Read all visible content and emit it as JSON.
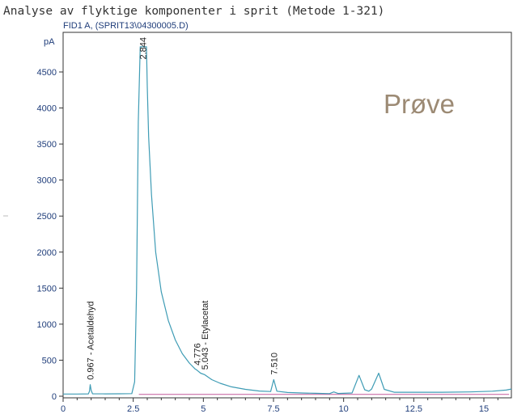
{
  "header": {
    "title": "Analyse av flyktige komponenter i sprit (Metode 1-321)",
    "signal_label": "FID1 A,  (SPRIT13\\04300005.D)",
    "watermark": "Prøve"
  },
  "chart_data": {
    "type": "line",
    "title": "Analyse av flyktige komponenter i sprit (Metode 1-321)",
    "subtitle": "FID1 A,  (SPRIT13\\04300005.D)",
    "xlabel": "",
    "ylabel": "pA",
    "xlim": [
      0,
      16
    ],
    "ylim": [
      0,
      4850
    ],
    "x_ticks": [
      0,
      2.5,
      5,
      7.5,
      10,
      12.5,
      15
    ],
    "x_tick_labels": [
      "0",
      "2.5",
      "5",
      "7.5",
      "10",
      "12.5",
      "15"
    ],
    "y_ticks": [
      0,
      500,
      1000,
      1500,
      2000,
      2500,
      3000,
      3500,
      4000,
      4500
    ],
    "y_tick_labels": [
      "0",
      "500",
      "1000",
      "1500",
      "2000",
      "2500",
      "3000",
      "3500",
      "4000",
      "4500"
    ],
    "grid": false,
    "colors": {
      "trace": "#3f9cb5",
      "baseline": "#c25a9a",
      "frame": "#333333",
      "text": "#1f3d7a",
      "watermark": "#9c8a74"
    },
    "baseline_level": 25,
    "series": [
      {
        "points": [
          [
            0.0,
            30
          ],
          [
            0.5,
            30
          ],
          [
            0.9,
            32
          ],
          [
            0.94,
            70
          ],
          [
            0.967,
            160
          ],
          [
            1.0,
            80
          ],
          [
            1.05,
            34
          ],
          [
            1.5,
            33
          ],
          [
            2.0,
            34
          ],
          [
            2.45,
            36
          ],
          [
            2.55,
            200
          ],
          [
            2.62,
            1500
          ],
          [
            2.68,
            3800
          ],
          [
            2.75,
            4850
          ],
          [
            2.82,
            4850
          ],
          [
            2.844,
            4850
          ],
          [
            2.9,
            4850
          ],
          [
            2.97,
            4850
          ],
          [
            3.0,
            4300
          ],
          [
            3.05,
            3600
          ],
          [
            3.15,
            2800
          ],
          [
            3.3,
            2000
          ],
          [
            3.5,
            1450
          ],
          [
            3.75,
            1050
          ],
          [
            4.0,
            780
          ],
          [
            4.25,
            590
          ],
          [
            4.5,
            460
          ],
          [
            4.7,
            380
          ],
          [
            4.776,
            360
          ],
          [
            4.9,
            320
          ],
          [
            5.043,
            300
          ],
          [
            5.15,
            270
          ],
          [
            5.3,
            230
          ],
          [
            5.6,
            180
          ],
          [
            6.0,
            130
          ],
          [
            6.5,
            95
          ],
          [
            7.0,
            72
          ],
          [
            7.4,
            65
          ],
          [
            7.51,
            230
          ],
          [
            7.62,
            70
          ],
          [
            8.0,
            52
          ],
          [
            8.5,
            45
          ],
          [
            9.0,
            40
          ],
          [
            9.5,
            36
          ],
          [
            9.65,
            60
          ],
          [
            9.8,
            38
          ],
          [
            10.3,
            45
          ],
          [
            10.55,
            290
          ],
          [
            10.75,
            90
          ],
          [
            10.9,
            70
          ],
          [
            11.0,
            100
          ],
          [
            11.25,
            320
          ],
          [
            11.45,
            95
          ],
          [
            11.8,
            55
          ],
          [
            12.5,
            55
          ],
          [
            13.5,
            55
          ],
          [
            14.5,
            60
          ],
          [
            15.3,
            70
          ],
          [
            15.8,
            85
          ],
          [
            16.0,
            100
          ]
        ]
      }
    ],
    "peak_labels": [
      {
        "x": 0.967,
        "y": 160,
        "text": "0.967 - Acetaldehyd"
      },
      {
        "x": 2.844,
        "y": 4850,
        "text": "2.844"
      },
      {
        "x": 4.776,
        "y": 360,
        "text": "4.776"
      },
      {
        "x": 5.043,
        "y": 300,
        "text": "5.043 - Etylacetat"
      },
      {
        "x": 7.51,
        "y": 230,
        "text": "7.510"
      }
    ]
  }
}
